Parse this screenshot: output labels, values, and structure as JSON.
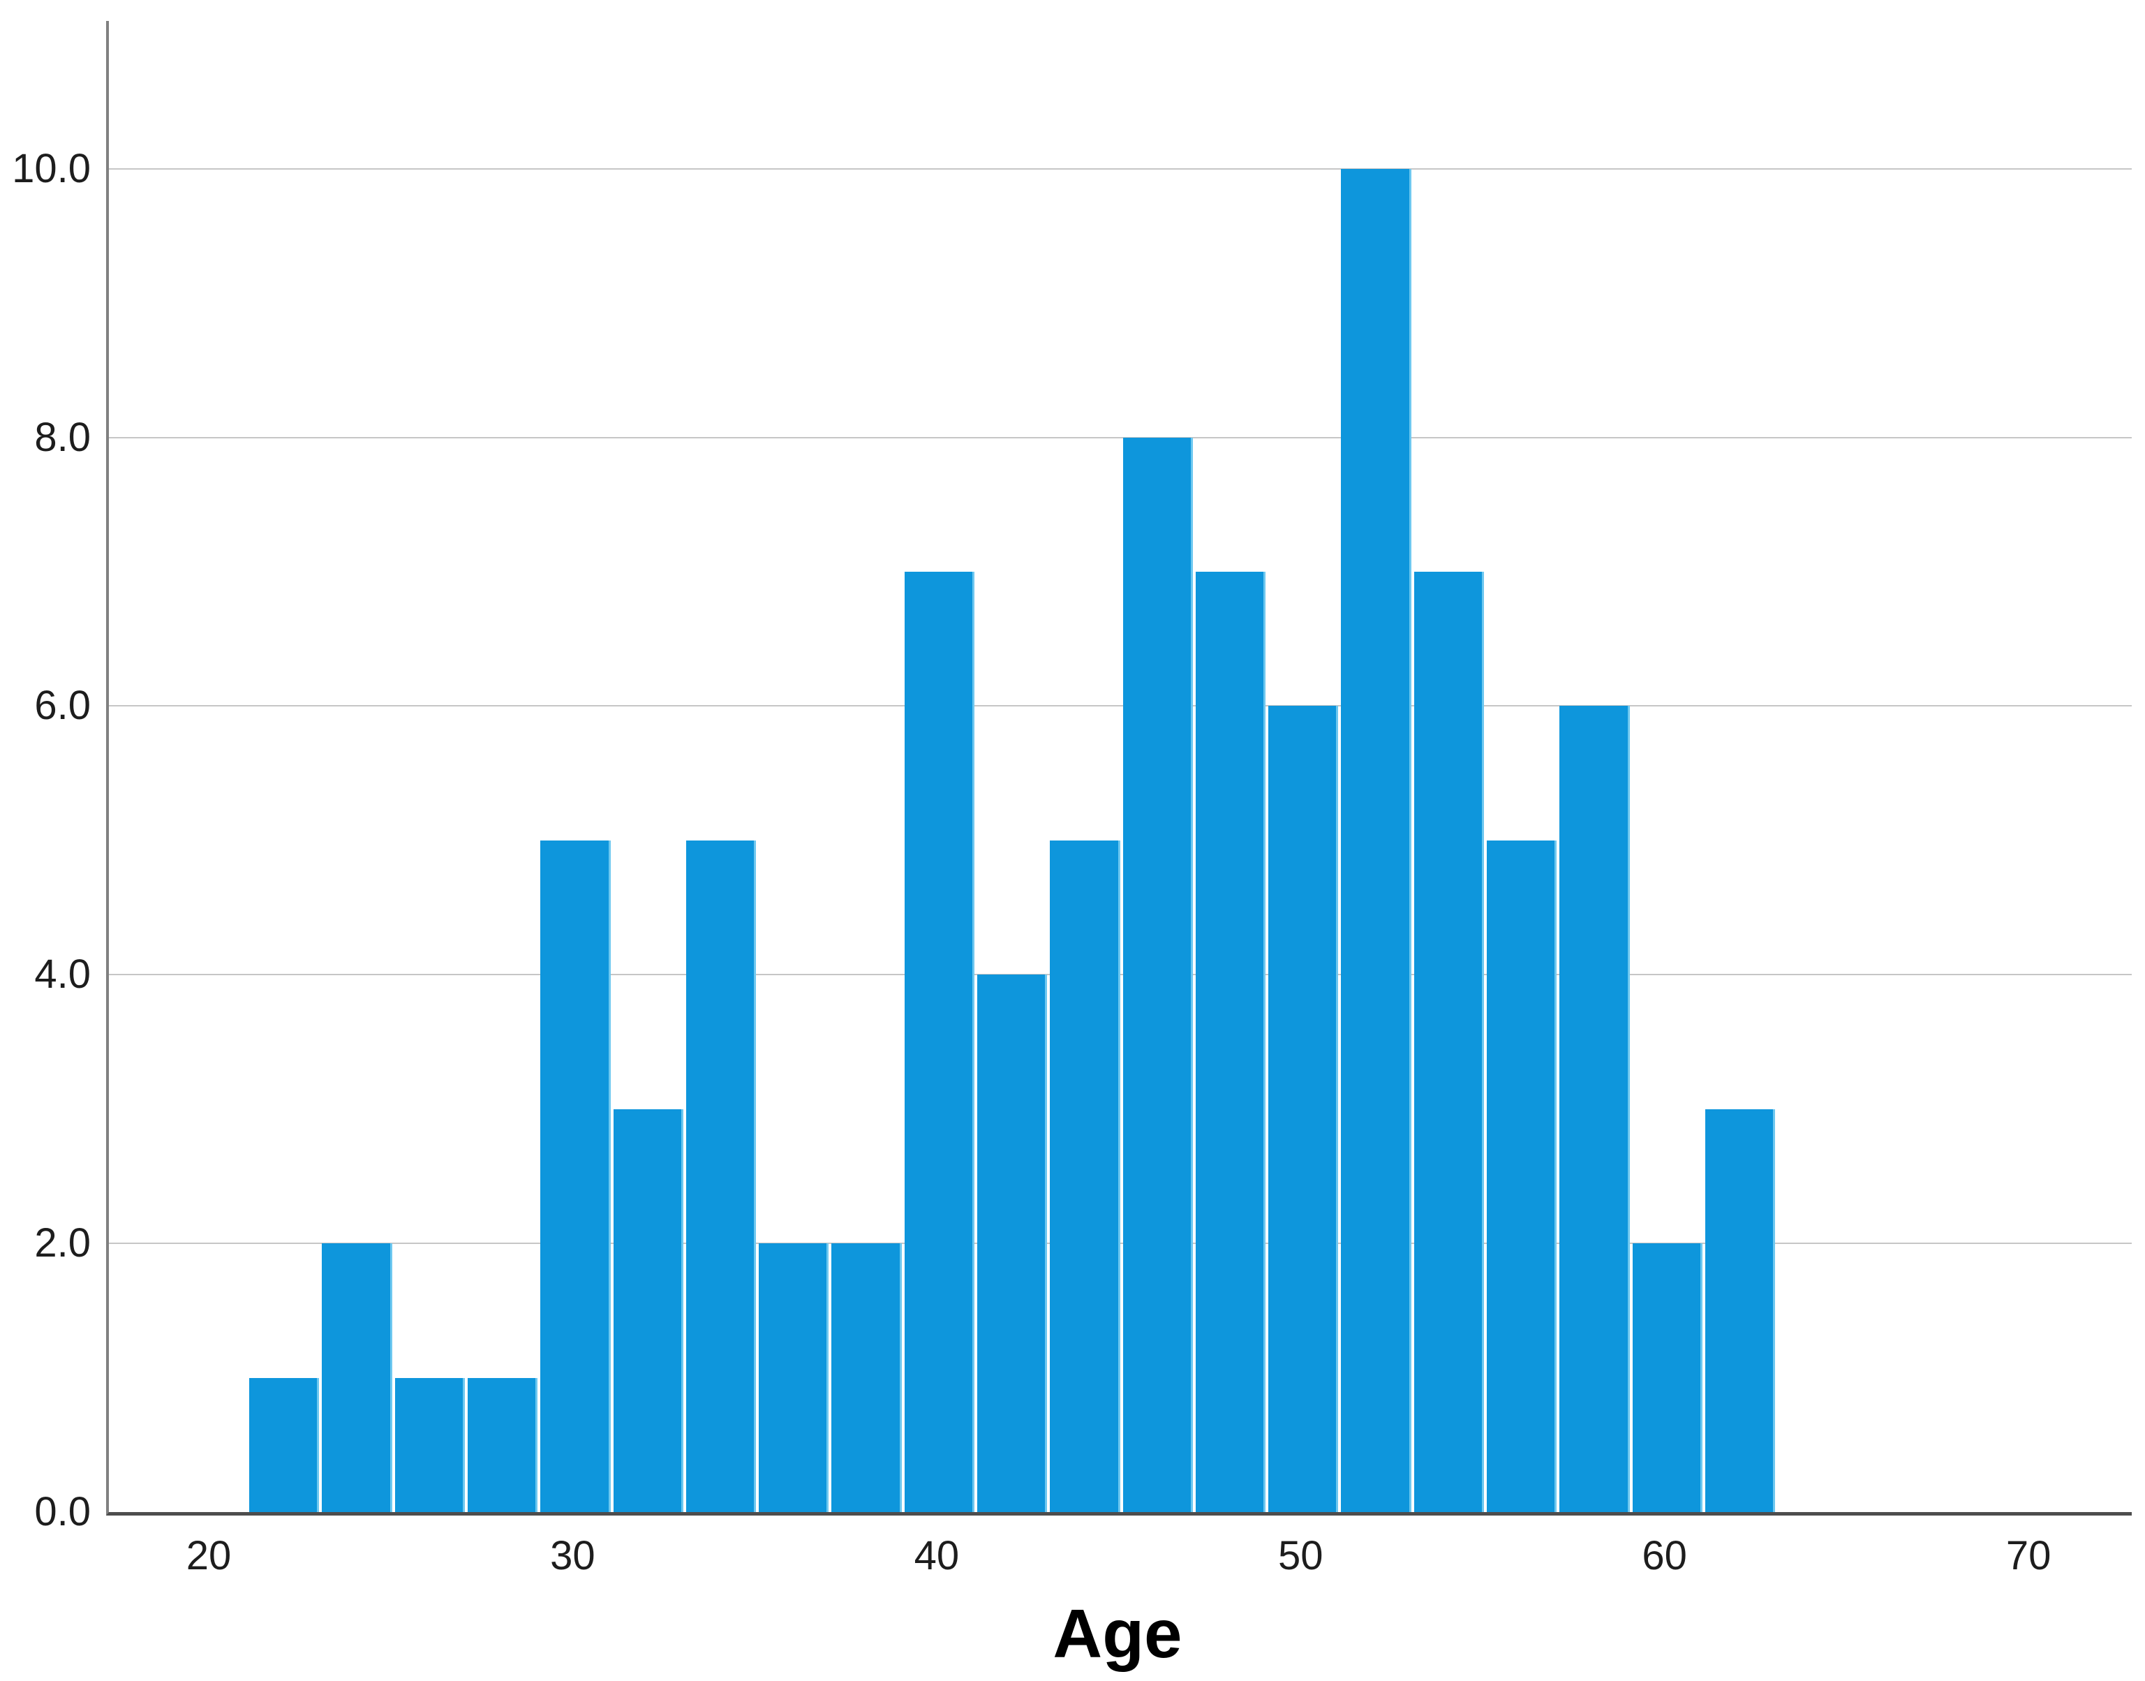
{
  "chart_data": {
    "type": "bar",
    "subtype": "histogram",
    "title": "",
    "xlabel": "Age",
    "ylabel": "",
    "bin_start": 21,
    "bin_width": 2,
    "bin_edges": [
      21,
      23,
      25,
      27,
      29,
      31,
      33,
      35,
      37,
      39,
      41,
      43,
      45,
      47,
      49,
      51,
      53,
      55,
      57,
      59,
      61,
      63
    ],
    "values": [
      1,
      2,
      1,
      1,
      5,
      3,
      5,
      2,
      2,
      7,
      4,
      5,
      8,
      7,
      6,
      10,
      7,
      5,
      6,
      2,
      3
    ],
    "x_ticks": [
      {
        "value": 20,
        "label": "20"
      },
      {
        "value": 30,
        "label": "30"
      },
      {
        "value": 40,
        "label": "40"
      },
      {
        "value": 50,
        "label": "50"
      },
      {
        "value": 60,
        "label": "60"
      },
      {
        "value": 70,
        "label": "70"
      }
    ],
    "y_ticks": [
      {
        "value": 0,
        "label": "0.0"
      },
      {
        "value": 2,
        "label": "2.0"
      },
      {
        "value": 4,
        "label": "4.0"
      },
      {
        "value": 6,
        "label": "6.0"
      },
      {
        "value": 8,
        "label": "8.0"
      },
      {
        "value": 10,
        "label": "10.0"
      }
    ],
    "grid_values": [
      2,
      4,
      6,
      8,
      10
    ],
    "xlim": [
      17.18,
      72.76
    ],
    "ylim": [
      0,
      11.1
    ],
    "grid_on": true,
    "legend": null,
    "bar_color": "#0e96dc",
    "bar_edge_highlight": "#6ec8f0",
    "bar_gap_color": "#ffffff",
    "grid_color": "#c6c6c6",
    "y_axis_color": "#808080",
    "x_axis_color": "#4d4d4d",
    "tick_label_color": "#1d1d1d",
    "background": "#ffffff"
  }
}
